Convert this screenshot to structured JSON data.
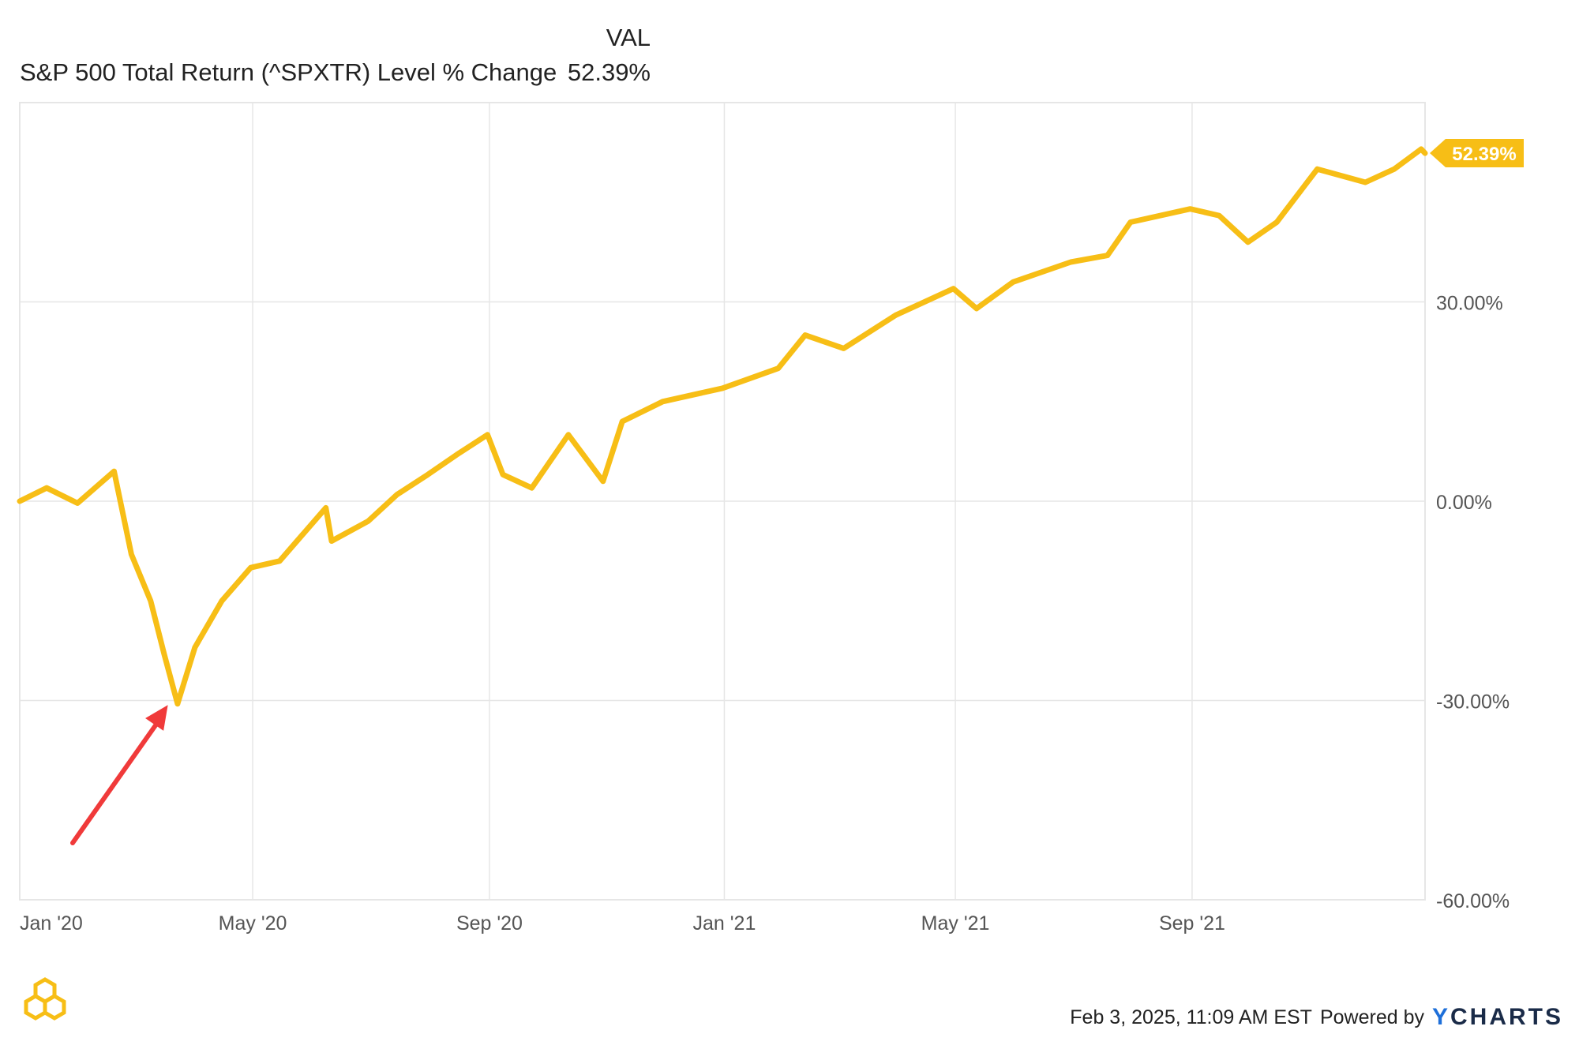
{
  "header": {
    "column_label": "VAL",
    "series_label": "S&P 500 Total Return (^SPXTR) Level % Change",
    "series_value": "52.39%"
  },
  "colors": {
    "line": "#F7BE16",
    "arrow": "#F03A3A",
    "grid": "#E6E6E6",
    "axis_text": "#555555"
  },
  "chart_data": {
    "type": "line",
    "x_tick_labels": [
      "Jan '20",
      "May '20",
      "Sep '20",
      "Jan '21",
      "May '21",
      "Sep '21"
    ],
    "y_tick_labels": [
      "30.00%",
      "0.00%",
      "-30.00%",
      "-60.00%"
    ],
    "y_ticks": [
      30,
      0,
      -30,
      -60
    ],
    "ylim": [
      -60,
      60
    ],
    "xlim": [
      "2020-01-01",
      "2021-12-31"
    ],
    "grid": true,
    "end_label": "52.39%",
    "series": [
      {
        "name": "S&P 500 Total Return (^SPXTR) Level % Change",
        "x": [
          "2020-01-01",
          "2020-01-15",
          "2020-01-31",
          "2020-02-19",
          "2020-02-28",
          "2020-03-09",
          "2020-03-16",
          "2020-03-23",
          "2020-04-01",
          "2020-04-15",
          "2020-04-30",
          "2020-05-15",
          "2020-06-08",
          "2020-06-11",
          "2020-06-30",
          "2020-07-15",
          "2020-07-31",
          "2020-08-15",
          "2020-08-31",
          "2020-09-08",
          "2020-09-23",
          "2020-10-12",
          "2020-10-30",
          "2020-11-09",
          "2020-11-30",
          "2020-12-31",
          "2021-01-29",
          "2021-02-12",
          "2021-03-04",
          "2021-03-31",
          "2021-04-30",
          "2021-05-12",
          "2021-05-31",
          "2021-06-30",
          "2021-07-19",
          "2021-07-31",
          "2021-08-31",
          "2021-09-15",
          "2021-09-30",
          "2021-10-15",
          "2021-11-05",
          "2021-11-30",
          "2021-12-15",
          "2021-12-29",
          "2021-12-31"
        ],
        "y": [
          0,
          2,
          -0.3,
          4.5,
          -8,
          -15,
          -23,
          -30.5,
          -22,
          -15,
          -10,
          -9,
          -1,
          -6,
          -3,
          1,
          4,
          7,
          10,
          4,
          2,
          10,
          3,
          12,
          15,
          17,
          20,
          25,
          23,
          28,
          32,
          29,
          33,
          36,
          37,
          42,
          44,
          43,
          39,
          42,
          50,
          48,
          50,
          53,
          52.39
        ]
      }
    ]
  },
  "footer": {
    "timestamp": "Feb 3, 2025, 11:09 AM EST",
    "powered_by": "Powered by",
    "brand_y": "Y",
    "brand_rest": "CHARTS"
  },
  "icons": {
    "logo": "hexagon-logo-icon"
  }
}
